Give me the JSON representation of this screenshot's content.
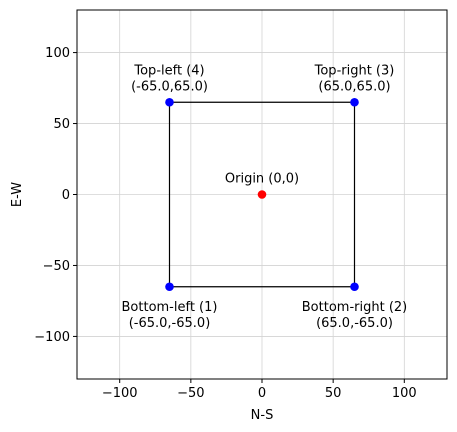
{
  "chart_data": {
    "type": "scatter",
    "title": "",
    "xlabel": "N-S",
    "ylabel": "E-W",
    "xlim": [
      -130,
      130
    ],
    "ylim": [
      -130,
      130
    ],
    "grid": true,
    "xticks": [
      -100,
      -50,
      0,
      50,
      100
    ],
    "yticks": [
      -100,
      -50,
      0,
      50,
      100
    ],
    "xtick_labels": [
      "−100",
      "−50",
      "0",
      "50",
      "100"
    ],
    "ytick_labels": [
      "−100",
      "−50",
      "0",
      "50",
      "100"
    ],
    "rectangle": {
      "x": [
        -65,
        65,
        65,
        -65,
        -65
      ],
      "y": [
        -65,
        -65,
        65,
        65,
        -65
      ],
      "color": "#000000"
    },
    "series": [
      {
        "color": "#0000ff",
        "points": [
          {
            "x": -65,
            "y": -65,
            "label1": "Bottom-left (1)",
            "label2": "(-65.0,-65.0)",
            "pos": "below"
          },
          {
            "x": 65,
            "y": -65,
            "label1": "Bottom-right (2)",
            "label2": "(65.0,-65.0)",
            "pos": "below"
          },
          {
            "x": 65,
            "y": 65,
            "label1": "Top-right (3)",
            "label2": "(65.0,65.0)",
            "pos": "above"
          },
          {
            "x": -65,
            "y": 65,
            "label1": "Top-left (4)",
            "label2": "(-65.0,65.0)",
            "pos": "above"
          }
        ]
      },
      {
        "color": "#ff0000",
        "points": [
          {
            "x": 0,
            "y": 0,
            "label1": "Origin (0,0)",
            "label2": "",
            "pos": "above"
          }
        ]
      }
    ]
  }
}
